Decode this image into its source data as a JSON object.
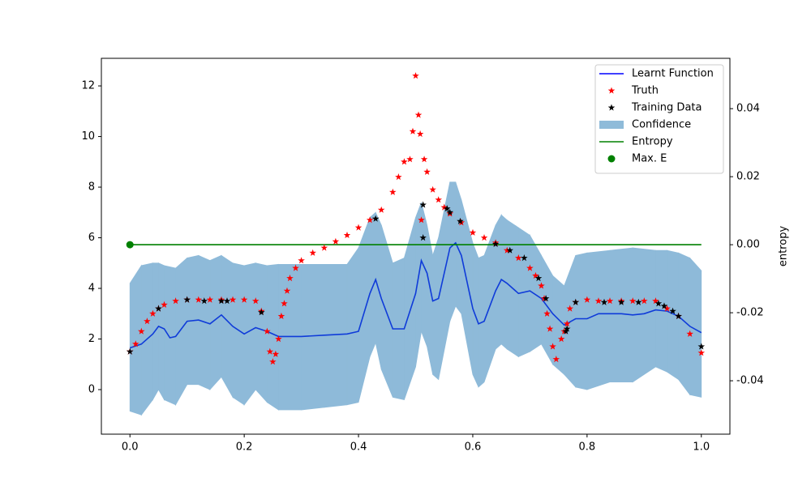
{
  "chart_data": {
    "type": "line",
    "xlim": [
      -0.05,
      1.05
    ],
    "xticks": [
      {
        "value": 0,
        "label": "0.0"
      },
      0.2,
      0.4,
      0.6,
      0.8,
      {
        "value": 1,
        "label": "1.0"
      }
    ],
    "ylim": [
      -1.76,
      13.09
    ],
    "yticks": [
      0,
      2,
      4,
      6,
      8,
      10,
      12
    ],
    "y2lim": [
      -0.0557,
      0.0548
    ],
    "y2ticks": [
      -0.04,
      -0.02,
      {
        "value": 0,
        "label": "0.00"
      },
      0.02,
      0.04
    ],
    "y2label": "entropy",
    "legend": "upper right",
    "series": [
      {
        "name": "Learnt Function",
        "color": "#0000ff",
        "marker": "line",
        "x": [
          0,
          0.02,
          0.04,
          0.05,
          0.06,
          0.07,
          0.08,
          0.1,
          0.12,
          0.14,
          0.16,
          0.18,
          0.2,
          0.22,
          0.24,
          0.26,
          0.3,
          0.34,
          0.38,
          0.4,
          0.42,
          0.43,
          0.44,
          0.46,
          0.48,
          0.5,
          0.51,
          0.52,
          0.53,
          0.54,
          0.56,
          0.57,
          0.58,
          0.6,
          0.61,
          0.62,
          0.64,
          0.65,
          0.66,
          0.68,
          0.7,
          0.72,
          0.74,
          0.76,
          0.78,
          0.8,
          0.82,
          0.84,
          0.86,
          0.88,
          0.9,
          0.92,
          0.94,
          0.96,
          0.98,
          1.0
        ],
        "values": [
          1.65,
          1.8,
          2.2,
          2.5,
          2.4,
          2.05,
          2.1,
          2.7,
          2.75,
          2.6,
          2.95,
          2.5,
          2.2,
          2.45,
          2.3,
          2.1,
          2.1,
          2.15,
          2.2,
          2.3,
          3.8,
          4.35,
          3.6,
          2.4,
          2.4,
          3.8,
          5.1,
          4.6,
          3.5,
          3.6,
          5.6,
          5.8,
          5.3,
          3.2,
          2.6,
          2.7,
          3.9,
          4.35,
          4.2,
          3.8,
          3.9,
          3.6,
          3.0,
          2.55,
          2.8,
          2.8,
          3.0,
          3.0,
          3.0,
          2.95,
          3.0,
          3.15,
          3.1,
          2.9,
          2.5,
          2.25
        ]
      },
      {
        "name": "Truth",
        "color": "#ff0000",
        "marker": "*",
        "x": [
          0,
          0.01,
          0.02,
          0.03,
          0.04,
          0.05,
          0.06,
          0.08,
          0.1,
          0.12,
          0.14,
          0.16,
          0.18,
          0.2,
          0.22,
          0.23,
          0.24,
          0.245,
          0.25,
          0.255,
          0.26,
          0.265,
          0.27,
          0.275,
          0.28,
          0.29,
          0.3,
          0.32,
          0.34,
          0.36,
          0.38,
          0.4,
          0.42,
          0.44,
          0.46,
          0.47,
          0.48,
          0.49,
          0.495,
          0.5,
          0.505,
          0.508,
          0.51,
          0.515,
          0.52,
          0.53,
          0.54,
          0.55,
          0.56,
          0.58,
          0.6,
          0.62,
          0.64,
          0.66,
          0.68,
          0.7,
          0.71,
          0.72,
          0.725,
          0.73,
          0.735,
          0.74,
          0.746,
          0.755,
          0.76,
          0.765,
          0.77,
          0.78,
          0.8,
          0.82,
          0.84,
          0.86,
          0.88,
          0.9,
          0.92,
          0.94,
          0.96,
          0.98,
          1.0
        ],
        "values": [
          1.5,
          1.8,
          2.3,
          2.7,
          3.0,
          3.2,
          3.35,
          3.5,
          3.55,
          3.55,
          3.55,
          3.55,
          3.55,
          3.55,
          3.5,
          3.1,
          2.3,
          1.5,
          1.1,
          1.4,
          2.0,
          2.9,
          3.4,
          3.9,
          4.4,
          4.8,
          5.1,
          5.4,
          5.6,
          5.85,
          6.1,
          6.4,
          6.7,
          7.1,
          7.8,
          8.4,
          9.0,
          9.1,
          10.2,
          12.4,
          10.85,
          10.1,
          6.7,
          9.1,
          8.6,
          7.9,
          7.5,
          7.2,
          6.95,
          6.6,
          6.2,
          6.0,
          5.8,
          5.5,
          5.2,
          4.8,
          4.5,
          4.1,
          3.6,
          3.0,
          2.4,
          1.7,
          1.2,
          2.0,
          2.3,
          2.6,
          3.2,
          3.45,
          3.55,
          3.5,
          3.5,
          3.5,
          3.5,
          3.5,
          3.5,
          3.2,
          2.9,
          2.2,
          1.45
        ]
      },
      {
        "name": "Training Data",
        "color": "#000000",
        "marker": "*",
        "x": [
          0,
          0.05,
          0.1,
          0.13,
          0.16,
          0.17,
          0.23,
          0.43,
          0.513,
          0.513,
          0.555,
          0.56,
          0.578,
          0.64,
          0.665,
          0.69,
          0.715,
          0.728,
          0.763,
          0.765,
          0.78,
          0.83,
          0.86,
          0.89,
          0.925,
          0.935,
          0.95,
          0.96,
          1.0
        ],
        "values": [
          1.5,
          3.2,
          3.55,
          3.5,
          3.5,
          3.5,
          3.05,
          6.75,
          7.3,
          6.0,
          7.15,
          7.0,
          6.65,
          5.75,
          5.5,
          5.2,
          4.4,
          3.6,
          2.3,
          2.4,
          3.45,
          3.45,
          3.45,
          3.45,
          3.4,
          3.3,
          3.1,
          2.9,
          1.7
        ]
      },
      {
        "name": "Confidence",
        "color": "#1f77b4",
        "alpha": 0.5,
        "marker": "band",
        "x": [
          0,
          0.02,
          0.04,
          0.05,
          0.06,
          0.08,
          0.1,
          0.12,
          0.14,
          0.16,
          0.18,
          0.2,
          0.22,
          0.24,
          0.26,
          0.3,
          0.34,
          0.38,
          0.4,
          0.42,
          0.43,
          0.44,
          0.46,
          0.48,
          0.5,
          0.51,
          0.52,
          0.53,
          0.54,
          0.56,
          0.57,
          0.58,
          0.6,
          0.61,
          0.62,
          0.64,
          0.65,
          0.66,
          0.68,
          0.7,
          0.72,
          0.74,
          0.76,
          0.78,
          0.8,
          0.84,
          0.88,
          0.92,
          0.94,
          0.96,
          0.98,
          1.0
        ],
        "upper": [
          4.2,
          4.9,
          5.0,
          5.0,
          4.9,
          4.8,
          5.2,
          5.3,
          5.1,
          5.3,
          5.0,
          4.9,
          5.0,
          4.9,
          4.95,
          4.95,
          4.95,
          4.95,
          5.6,
          6.8,
          7.0,
          6.5,
          5.0,
          5.2,
          6.8,
          7.4,
          6.5,
          5.3,
          6.0,
          8.2,
          8.2,
          7.5,
          5.8,
          5.2,
          5.3,
          6.5,
          6.9,
          6.7,
          6.4,
          6.1,
          5.3,
          4.5,
          4.1,
          5.3,
          5.4,
          5.5,
          5.6,
          5.5,
          5.5,
          5.4,
          5.2,
          4.7
        ],
        "lower": [
          -0.85,
          -1.0,
          -0.4,
          0.0,
          -0.4,
          -0.6,
          0.2,
          0.2,
          0.0,
          0.5,
          -0.3,
          -0.6,
          0.0,
          -0.5,
          -0.8,
          -0.8,
          -0.7,
          -0.6,
          -0.5,
          1.3,
          1.85,
          0.8,
          -0.3,
          -0.4,
          0.9,
          2.3,
          1.7,
          0.6,
          0.4,
          2.7,
          3.3,
          3.0,
          0.6,
          0.1,
          0.3,
          1.6,
          1.8,
          1.6,
          1.3,
          1.5,
          1.8,
          1.0,
          0.6,
          0.1,
          0.0,
          0.3,
          0.3,
          0.9,
          0.7,
          0.4,
          -0.2,
          -0.3
        ]
      },
      {
        "name": "Entropy",
        "color": "#008000",
        "marker": "line",
        "axis": "y2",
        "x": [
          0,
          1
        ],
        "values": [
          0,
          0
        ]
      },
      {
        "name": "Max. E",
        "color": "#008000",
        "marker": "o",
        "axis": "y2",
        "x": [
          0
        ],
        "values": [
          0
        ]
      }
    ]
  }
}
